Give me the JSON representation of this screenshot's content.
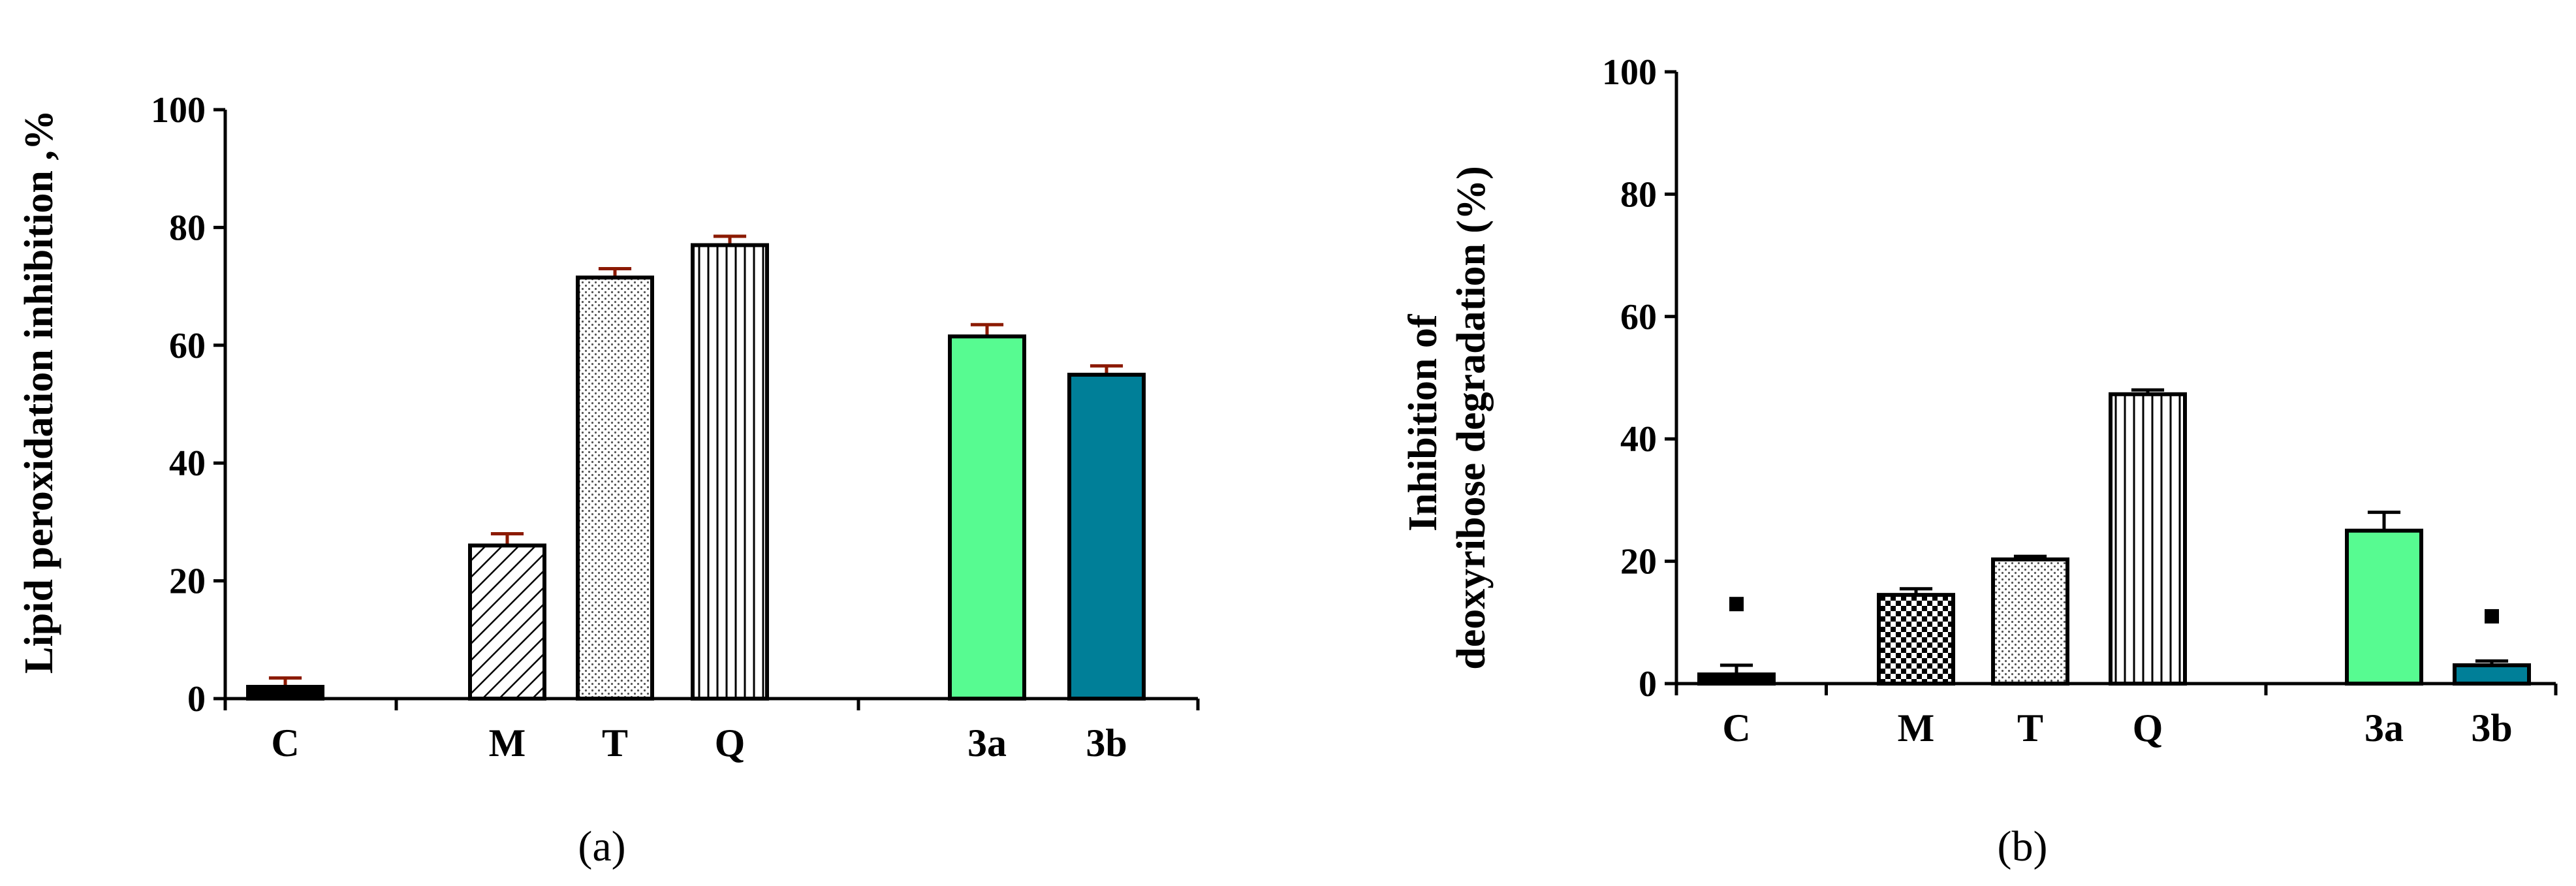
{
  "chart_data": [
    {
      "type": "bar",
      "panel_label": "(a)",
      "title": "",
      "xlabel": "",
      "ylabel": "Lipid peroxidation  inhibition ,%",
      "ylim": [
        0,
        100
      ],
      "yticks": [
        0,
        20,
        40,
        60,
        80,
        100
      ],
      "categories": [
        "C",
        "M",
        "T",
        "Q",
        "3a",
        "3b"
      ],
      "values": [
        2,
        26,
        71.5,
        77,
        61.5,
        55
      ],
      "errors": [
        1.5,
        2,
        1.5,
        1.5,
        2,
        1.5
      ],
      "error_color": "#8b1a00",
      "outliers": [],
      "patterns": [
        "solid-black",
        "diagonal-hatch",
        "dots",
        "vertical-lines",
        "solid-green",
        "solid-teal"
      ],
      "colors": {
        "green": "#57fb91",
        "teal": "#007f98"
      },
      "legend": "none",
      "grid": false
    },
    {
      "type": "bar",
      "panel_label": "(b)",
      "title": "",
      "xlabel": "",
      "ylabel": [
        "Inhibition of",
        "deoxyribose degradation (%)"
      ],
      "ylim": [
        0,
        100
      ],
      "yticks": [
        0,
        20,
        40,
        60,
        80,
        100
      ],
      "categories": [
        "C",
        "M",
        "T",
        "Q",
        "3a",
        "3b"
      ],
      "values": [
        1.5,
        14.5,
        20.3,
        47.3,
        25,
        3
      ],
      "errors": [
        1.5,
        1,
        0.5,
        0.7,
        3,
        0.7
      ],
      "error_color": "#000000",
      "outliers": [
        13,
        null,
        null,
        null,
        null,
        11
      ],
      "patterns": [
        "solid-black",
        "checker",
        "dots",
        "vertical-lines",
        "solid-green",
        "solid-teal"
      ],
      "colors": {
        "green": "#57fb91",
        "teal": "#007f98"
      },
      "legend": "none",
      "grid": false
    }
  ]
}
